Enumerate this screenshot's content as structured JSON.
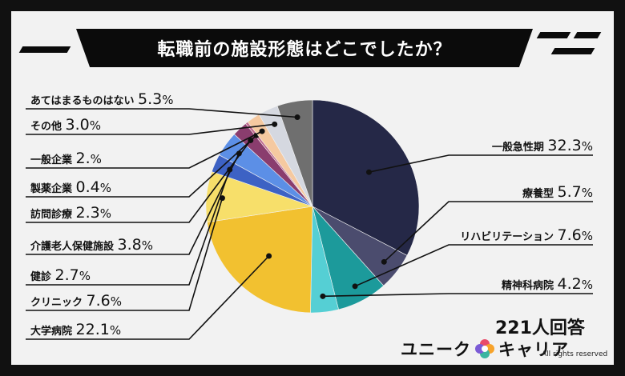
{
  "title": "転職前の施設形態はどこでしたか？",
  "respondents": "221人回答",
  "brand": {
    "left": "ユニーク",
    "right": "キャリア",
    "rights": "All rights reserved"
  },
  "chart_data": {
    "type": "pie",
    "title": "転職前の施設形態はどこでしたか？",
    "slices": [
      {
        "label": "一般急性期",
        "value": 32.3,
        "color": "#252847",
        "display": [
          "32.3",
          "%"
        ]
      },
      {
        "label": "療養型",
        "value": 5.7,
        "color": "#4b4c6e",
        "display": [
          "5.7",
          "%"
        ]
      },
      {
        "label": "リハビリテーション",
        "value": 7.6,
        "color": "#1c9a9b",
        "display": [
          "7.6",
          "%"
        ]
      },
      {
        "label": "精神科病院",
        "value": 4.2,
        "color": "#55cfd4",
        "display": [
          "4.2",
          "%"
        ]
      },
      {
        "label": "大学病院",
        "value": 22.1,
        "color": "#f2c130",
        "display": [
          "22.1",
          "%"
        ]
      },
      {
        "label": "クリニック",
        "value": 7.6,
        "color": "#f7df6a",
        "display": [
          "7.6",
          "%"
        ]
      },
      {
        "label": "健診",
        "value": 2.7,
        "color": "#3d62c4",
        "display": [
          "2.7",
          "%"
        ]
      },
      {
        "label": "介護老人保健施設",
        "value": 3.8,
        "color": "#5c8fe6",
        "display": [
          "3.8",
          "%"
        ]
      },
      {
        "label": "訪問診療",
        "value": 2.3,
        "color": "#8a3d6e",
        "display": [
          "2.3",
          "%"
        ]
      },
      {
        "label": "製薬企業",
        "value": 0.4,
        "color": "#c06a8e",
        "display": [
          "0.4",
          "%"
        ]
      },
      {
        "label": "一般企業",
        "value": 2.0,
        "color": "#f5c9a0",
        "display": [
          "2.",
          "%"
        ]
      },
      {
        "label": "その他",
        "value": 3.0,
        "color": "#d5d8e0",
        "display": [
          "3.0",
          "%"
        ]
      },
      {
        "label": "あてはまるものはない",
        "value": 5.3,
        "color": "#6f6f6f",
        "display": [
          "5.3",
          "%"
        ]
      }
    ]
  }
}
